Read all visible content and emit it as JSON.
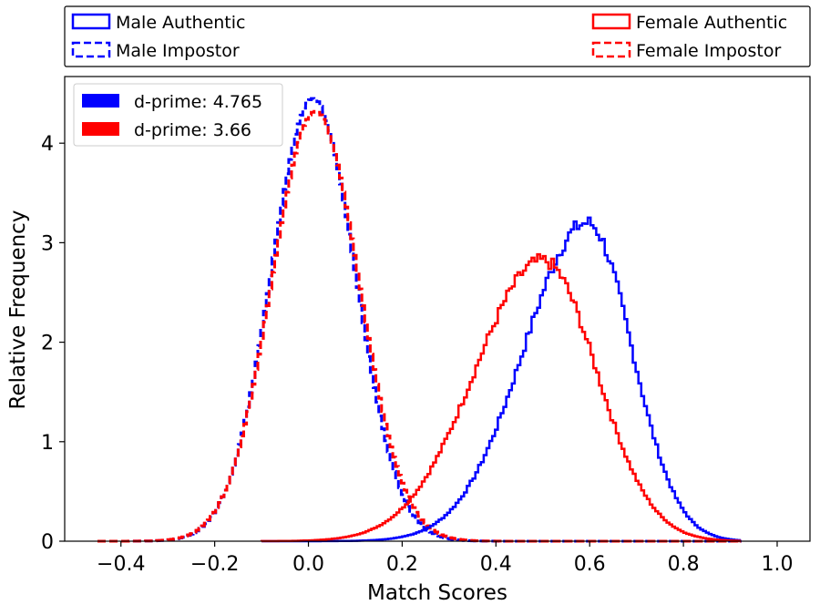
{
  "chart_data": {
    "type": "histogram-step",
    "xlabel": "Match Scores",
    "ylabel": "Relative Frequency",
    "xlim": [
      -0.52,
      1.07
    ],
    "ylim": [
      0,
      4.67
    ],
    "xticks": [
      -0.4,
      -0.2,
      0.0,
      0.2,
      0.4,
      0.6,
      0.8,
      1.0
    ],
    "xtick_labels": [
      "−0.4",
      "−0.2",
      "0.0",
      "0.2",
      "0.4",
      "0.6",
      "0.8",
      "1.0"
    ],
    "yticks": [
      0,
      1,
      2,
      3,
      4
    ],
    "ytick_labels": [
      "0",
      "1",
      "2",
      "3",
      "4"
    ],
    "outer_legend": {
      "placement": "above plot, two columns",
      "entries": [
        {
          "label": "Male Authentic",
          "color": "#0000ff",
          "dashed": false
        },
        {
          "label": "Male Impostor",
          "color": "#0000ff",
          "dashed": true
        },
        {
          "label": "Female Authentic",
          "color": "#ff0000",
          "dashed": false
        },
        {
          "label": "Female Impostor",
          "color": "#ff0000",
          "dashed": true
        }
      ]
    },
    "inner_legend": {
      "placement": "upper-left",
      "entries": [
        {
          "label": "d-prime: 4.765",
          "color": "#0000ff"
        },
        {
          "label": "d-prime: 3.66",
          "color": "#ff0000"
        }
      ]
    },
    "series": [
      {
        "name": "Male Impostor",
        "color": "#0000ff",
        "dashed": true,
        "distribution": "gaussian",
        "mean": 0.01,
        "std": 0.09,
        "peak": 4.45,
        "x_range": [
          -0.45,
          0.92
        ]
      },
      {
        "name": "Female Impostor",
        "color": "#ff0000",
        "dashed": true,
        "distribution": "gaussian",
        "mean": 0.015,
        "std": 0.093,
        "peak": 4.32,
        "x_range": [
          -0.45,
          0.92
        ]
      },
      {
        "name": "Male Authentic",
        "color": "#0000ff",
        "dashed": false,
        "distribution": "skewed",
        "mode": 0.595,
        "std_left": 0.135,
        "std_right": 0.095,
        "peak": 3.2,
        "x_range": [
          -0.1,
          0.92
        ]
      },
      {
        "name": "Female Authentic",
        "color": "#ff0000",
        "dashed": false,
        "distribution": "skewed",
        "mode": 0.5,
        "std_left": 0.145,
        "std_right": 0.115,
        "peak": 2.82,
        "x_range": [
          -0.1,
          0.92
        ]
      }
    ]
  }
}
